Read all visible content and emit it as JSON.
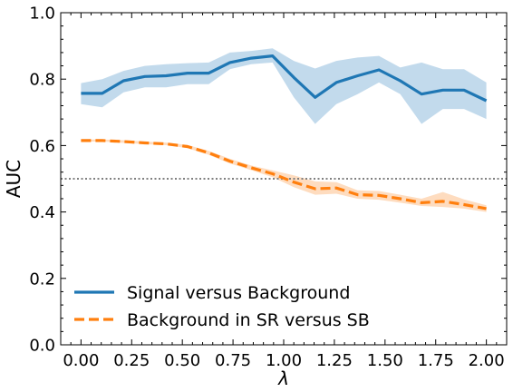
{
  "chart_data": {
    "type": "line",
    "xlabel": "λ",
    "ylabel": "AUC",
    "xlim": [
      -0.1,
      2.1
    ],
    "ylim": [
      0.0,
      1.0
    ],
    "x_ticks": [
      "0.00",
      "0.25",
      "0.50",
      "0.75",
      "1.00",
      "1.25",
      "1.50",
      "1.75",
      "2.00"
    ],
    "y_ticks": [
      "0.0",
      "0.2",
      "0.4",
      "0.6",
      "0.8",
      "1.0"
    ],
    "grid": false,
    "legend_position": "lower-left",
    "reference_line": {
      "y": 0.5,
      "style": "dotted",
      "color": "#808080"
    },
    "x": [
      0.0,
      0.105,
      0.21,
      0.315,
      0.42,
      0.525,
      0.63,
      0.735,
      0.84,
      0.945,
      1.05,
      1.155,
      1.26,
      1.365,
      1.47,
      1.575,
      1.68,
      1.785,
      1.89,
      2.0
    ],
    "series": [
      {
        "name": "Signal versus Background",
        "color": "#1f77b4",
        "band_color": "#aecde6",
        "style": "solid",
        "values": [
          0.757,
          0.757,
          0.795,
          0.808,
          0.81,
          0.818,
          0.818,
          0.85,
          0.863,
          0.87,
          0.805,
          0.745,
          0.79,
          0.81,
          0.828,
          0.795,
          0.755,
          0.767,
          0.767,
          0.735
        ],
        "lower": [
          0.725,
          0.715,
          0.76,
          0.775,
          0.775,
          0.785,
          0.785,
          0.83,
          0.845,
          0.85,
          0.745,
          0.665,
          0.725,
          0.755,
          0.79,
          0.755,
          0.665,
          0.71,
          0.71,
          0.68
        ],
        "upper": [
          0.788,
          0.8,
          0.825,
          0.84,
          0.845,
          0.848,
          0.85,
          0.88,
          0.885,
          0.893,
          0.855,
          0.832,
          0.855,
          0.865,
          0.87,
          0.835,
          0.85,
          0.83,
          0.83,
          0.79
        ]
      },
      {
        "name": "Background in SR versus SB",
        "color": "#ff7f0e",
        "band_color": "#fdd0aa",
        "style": "dashed",
        "values": [
          0.615,
          0.615,
          0.612,
          0.608,
          0.605,
          0.597,
          0.578,
          0.553,
          0.533,
          0.515,
          0.49,
          0.47,
          0.472,
          0.452,
          0.45,
          0.44,
          0.428,
          0.432,
          0.422,
          0.41
        ],
        "lower": [
          0.612,
          0.612,
          0.608,
          0.604,
          0.601,
          0.592,
          0.572,
          0.546,
          0.526,
          0.505,
          0.475,
          0.452,
          0.455,
          0.44,
          0.437,
          0.428,
          0.418,
          0.415,
          0.41,
          0.4
        ],
        "upper": [
          0.618,
          0.618,
          0.616,
          0.612,
          0.609,
          0.602,
          0.584,
          0.56,
          0.54,
          0.525,
          0.51,
          0.492,
          0.49,
          0.465,
          0.463,
          0.452,
          0.44,
          0.46,
          0.438,
          0.42
        ]
      }
    ]
  }
}
